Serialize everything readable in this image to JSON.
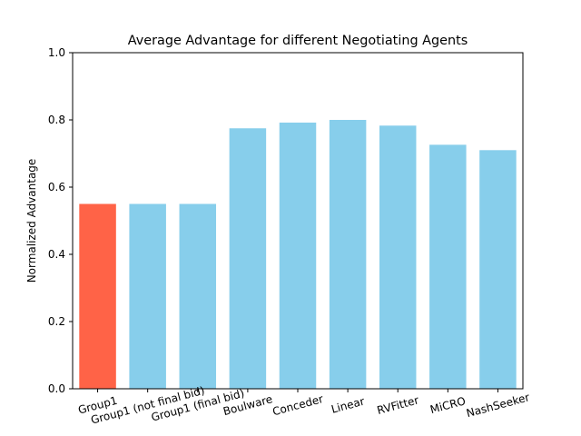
{
  "chart_data": {
    "type": "bar",
    "title": "Average Advantage for different Negotiating Agents",
    "xlabel": "",
    "ylabel": "Normalized Advantage",
    "ylim": [
      0,
      1.0
    ],
    "yticks": [
      "0.0",
      "0.2",
      "0.4",
      "0.6",
      "0.8",
      "1.0"
    ],
    "grid": false,
    "categories": [
      "Group1",
      "Group1 (not final bid)",
      "Group1 (final bid)",
      "Boulware",
      "Conceder",
      "Linear",
      "RVFitter",
      "MiCRO",
      "NashSeeker"
    ],
    "values": [
      0.55,
      0.55,
      0.55,
      0.775,
      0.792,
      0.8,
      0.783,
      0.726,
      0.71
    ],
    "colors": [
      "#ff6347",
      "#87ceeb",
      "#87ceeb",
      "#87ceeb",
      "#87ceeb",
      "#87ceeb",
      "#87ceeb",
      "#87ceeb",
      "#87ceeb"
    ]
  }
}
